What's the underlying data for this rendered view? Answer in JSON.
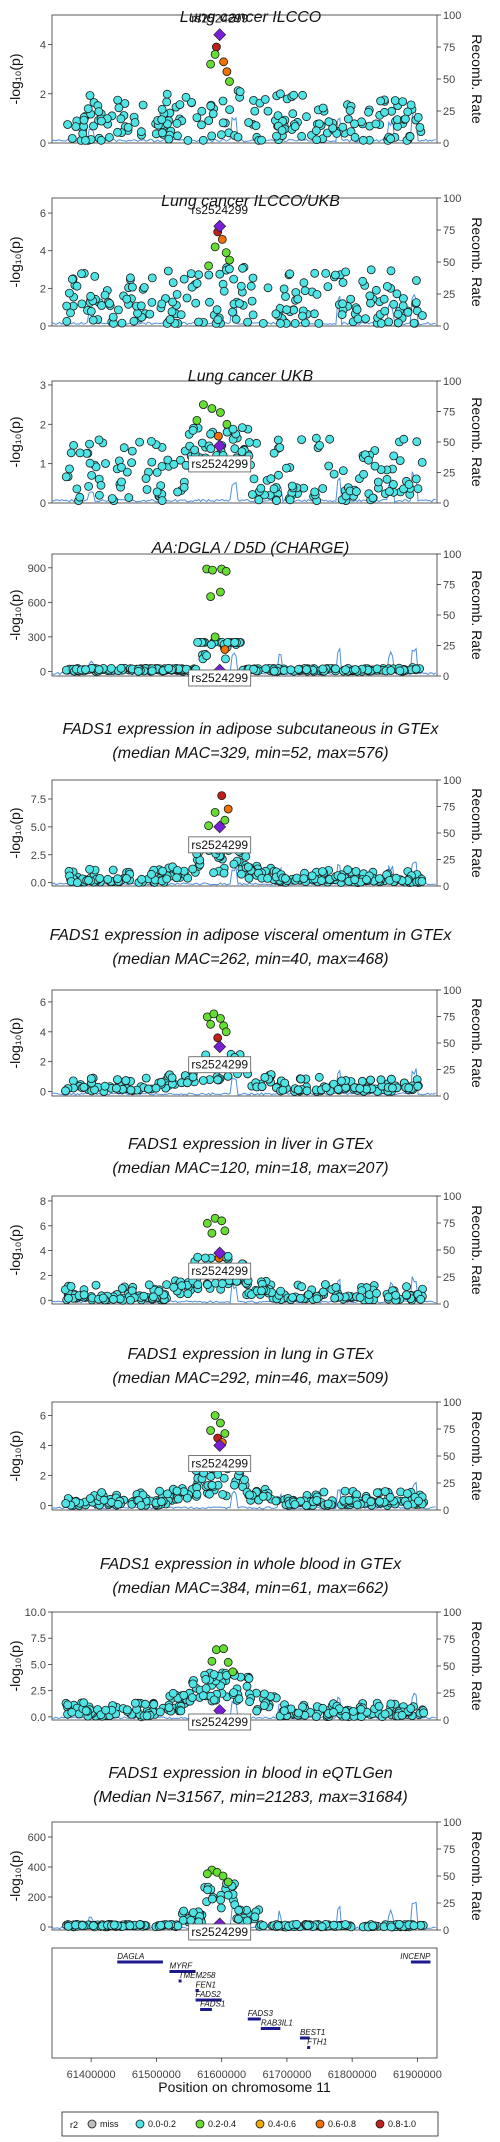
{
  "chart_data": {
    "type": "scatter",
    "x_axis": {
      "label": "Position on chromosome 11",
      "range": [
        61340000,
        61930000
      ],
      "ticks": [
        "61400000",
        "61500000",
        "61600000",
        "61700000",
        "61800000",
        "61900000"
      ]
    },
    "y_label_left": "-log₁₀(p)",
    "y_label_right": "Recomb. Rate",
    "recomb_ticks": [
      "0",
      "25",
      "50",
      "75",
      "100"
    ],
    "lead_snp": {
      "label": "rs2524299",
      "position": 61597000
    },
    "panels": [
      {
        "title_lines": [
          "Lung cancer ILCCO"
        ],
        "ylim": [
          0,
          5.2
        ],
        "yticks": [
          "0",
          "2",
          "4"
        ],
        "ytick_values": [
          0,
          2,
          4
        ],
        "lead_value": 4.4,
        "snp_label_placement": "above",
        "profile": "A",
        "extra": [
          [
            61592000,
            3.9,
            "red"
          ],
          [
            61603000,
            3.3,
            "orange"
          ],
          [
            61608000,
            2.9,
            "orange"
          ],
          [
            61590000,
            3.6,
            "green"
          ],
          [
            61612000,
            2.5,
            "green"
          ],
          [
            61583000,
            3.2,
            "green"
          ]
        ]
      },
      {
        "title_lines": [
          "Lung cancer ILCCO/UKB"
        ],
        "ylim": [
          0,
          6.8
        ],
        "yticks": [
          "0",
          "2",
          "4",
          "6"
        ],
        "ytick_values": [
          0,
          2,
          4,
          6
        ],
        "lead_value": 5.3,
        "snp_label_placement": "above",
        "profile": "A",
        "extra": [
          [
            61594000,
            5.0,
            "red"
          ],
          [
            61601000,
            4.6,
            "orange"
          ],
          [
            61590000,
            4.2,
            "green"
          ],
          [
            61607000,
            3.9,
            "green"
          ],
          [
            61612000,
            3.5,
            "green"
          ],
          [
            61580000,
            3.2,
            "green"
          ]
        ]
      },
      {
        "title_lines": [
          "Lung cancer UKB"
        ],
        "ylim": [
          0,
          3.1
        ],
        "yticks": [
          "0",
          "1",
          "2",
          "3"
        ],
        "ytick_values": [
          0,
          1,
          2,
          3
        ],
        "lead_value": 1.45,
        "snp_label_placement": "below",
        "profile": "B",
        "extra": [
          [
            61572000,
            2.5,
            "green"
          ],
          [
            61585000,
            2.4,
            "green"
          ],
          [
            61598000,
            2.3,
            "green"
          ],
          [
            61608000,
            2.0,
            "green"
          ],
          [
            61595000,
            1.7,
            "orange"
          ],
          [
            61562000,
            2.1,
            "green"
          ]
        ]
      },
      {
        "title_lines": [
          "AA:DGLA / D5D (CHARGE)"
        ],
        "ylim": [
          -40,
          1020
        ],
        "yticks": [
          "0",
          "300",
          "600",
          "900"
        ],
        "ytick_values": [
          0,
          300,
          600,
          900
        ],
        "lead_value": 10,
        "snp_label_placement": "below",
        "profile": "C",
        "extra": [
          [
            61577000,
            890,
            "green"
          ],
          [
            61586000,
            880,
            "green"
          ],
          [
            61600000,
            890,
            "green"
          ],
          [
            61607000,
            870,
            "green"
          ],
          [
            61583000,
            650,
            "green"
          ],
          [
            61598000,
            690,
            "green"
          ],
          [
            61590000,
            300,
            "green"
          ],
          [
            61605000,
            190,
            "orange"
          ]
        ]
      },
      {
        "title_lines": [
          "FADS1 expression in adipose subcutaneous in GTEx",
          "(median MAC=329, min=52, max=576)"
        ],
        "ylim": [
          -0.3,
          9.2
        ],
        "yticks": [
          "0.0",
          "2.5",
          "5.0",
          "7.5"
        ],
        "ytick_values": [
          0,
          2.5,
          5,
          7.5
        ],
        "lead_value": 5.0,
        "snp_label_placement": "below",
        "profile": "D",
        "extra": [
          [
            61600000,
            7.8,
            "red"
          ],
          [
            61610000,
            6.6,
            "orange"
          ],
          [
            61590000,
            6.3,
            "green"
          ],
          [
            61605000,
            5.6,
            "green"
          ],
          [
            61580000,
            5.1,
            "green"
          ]
        ]
      },
      {
        "title_lines": [
          "FADS1 expression in adipose visceral omentum in GTEx",
          "(median MAC=262, min=40, max=468)"
        ],
        "ylim": [
          -0.3,
          6.8
        ],
        "yticks": [
          "0",
          "2",
          "4",
          "6"
        ],
        "ytick_values": [
          0,
          2,
          4,
          6
        ],
        "lead_value": 3.0,
        "snp_label_placement": "below",
        "profile": "D",
        "extra": [
          [
            61578000,
            5.0,
            "green"
          ],
          [
            61588000,
            5.2,
            "green"
          ],
          [
            61598000,
            4.9,
            "green"
          ],
          [
            61583000,
            4.5,
            "green"
          ],
          [
            61603000,
            4.4,
            "green"
          ],
          [
            61594000,
            3.6,
            "red"
          ],
          [
            61607000,
            4.0,
            "green"
          ]
        ]
      },
      {
        "title_lines": [
          "FADS1 expression in liver in GTEx",
          "(median MAC=120, min=18, max=207)"
        ],
        "ylim": [
          -0.3,
          8.4
        ],
        "yticks": [
          "0",
          "2",
          "4",
          "6",
          "8"
        ],
        "ytick_values": [
          0,
          2,
          4,
          6,
          8
        ],
        "lead_value": 3.8,
        "snp_label_placement": "below",
        "profile": "D",
        "extra": [
          [
            61578000,
            6.2,
            "green"
          ],
          [
            61590000,
            6.6,
            "green"
          ],
          [
            61600000,
            6.4,
            "green"
          ],
          [
            61585000,
            5.4,
            "green"
          ],
          [
            61605000,
            5.6,
            "green"
          ],
          [
            61596000,
            3.4,
            "orange"
          ]
        ]
      },
      {
        "title_lines": [
          "FADS1 expression in lung in GTEx",
          "(median MAC=292, min=46, max=509)"
        ],
        "ylim": [
          -0.3,
          6.9
        ],
        "yticks": [
          "0",
          "2",
          "4",
          "6"
        ],
        "ytick_values": [
          0,
          2,
          4,
          6
        ],
        "lead_value": 4.0,
        "snp_label_placement": "below",
        "profile": "D",
        "extra": [
          [
            61590000,
            6.0,
            "green"
          ],
          [
            61598000,
            5.5,
            "green"
          ],
          [
            61583000,
            5.0,
            "green"
          ],
          [
            61605000,
            4.8,
            "green"
          ],
          [
            61594000,
            4.5,
            "red"
          ],
          [
            61601000,
            4.2,
            "orange"
          ]
        ]
      },
      {
        "title_lines": [
          "FADS1 expression in whole blood in GTEx",
          "(median MAC=384, min=61, max=662)"
        ],
        "ylim": [
          -0.3,
          10.0
        ],
        "yticks": [
          "0.0",
          "2.5",
          "5.0",
          "7.5",
          "10.0"
        ],
        "ytick_values": [
          0,
          2.5,
          5,
          7.5,
          10
        ],
        "lead_value": 0.6,
        "snp_label_placement": "below",
        "profile": "E",
        "extra": [
          [
            61592000,
            6.4,
            "green"
          ],
          [
            61603000,
            6.5,
            "green"
          ],
          [
            61585000,
            5.3,
            "green"
          ],
          [
            61610000,
            5.2,
            "green"
          ],
          [
            61617000,
            4.3,
            "green"
          ]
        ]
      },
      {
        "title_lines": [
          "FADS1 expression in blood in eQTLGen",
          "(Median N=31567, min=21283, max=31684)"
        ],
        "ylim": [
          -20,
          700
        ],
        "yticks": [
          "0",
          "200",
          "400",
          "600"
        ],
        "ytick_values": [
          0,
          200,
          400,
          600
        ],
        "lead_value": 20,
        "snp_label_placement": "below",
        "profile": "F",
        "extra": [
          [
            61585000,
            380,
            "green"
          ],
          [
            61593000,
            365,
            "green"
          ],
          [
            61602000,
            340,
            "green"
          ],
          [
            61578000,
            355,
            "green"
          ],
          [
            61610000,
            300,
            "green"
          ]
        ]
      }
    ],
    "genes": [
      {
        "name": "DAGLA",
        "start": 61440000,
        "end": 61510000,
        "row": 0,
        "label_at": "start"
      },
      {
        "name": "MYRF",
        "start": 61520000,
        "end": 61560000,
        "row": 1,
        "label_at": "start"
      },
      {
        "name": "TMEM258",
        "start": 61534000,
        "end": 61538000,
        "row": 2,
        "label_at": "start"
      },
      {
        "name": "FEN1",
        "start": 61560000,
        "end": 61565000,
        "row": 3,
        "label_at": "start"
      },
      {
        "name": "FADS2",
        "start": 61560000,
        "end": 61600000,
        "row": 4,
        "label_at": "start"
      },
      {
        "name": "FADS1",
        "start": 61567000,
        "end": 61585000,
        "row": 5,
        "label_at": "start"
      },
      {
        "name": "FADS3",
        "start": 61640000,
        "end": 61660000,
        "row": 6,
        "label_at": "start"
      },
      {
        "name": "RAB3IL1",
        "start": 61660000,
        "end": 61690000,
        "row": 7,
        "label_at": "start"
      },
      {
        "name": "BEST1",
        "start": 61720000,
        "end": 61735000,
        "row": 8,
        "label_at": "start"
      },
      {
        "name": "FTH1",
        "start": 61731000,
        "end": 61735000,
        "row": 9,
        "label_at": "start"
      },
      {
        "name": "INCENP",
        "start": 61890000,
        "end": 61920000,
        "row": 0,
        "label_at": "end"
      }
    ],
    "legend": {
      "title": "r2",
      "items": [
        {
          "label": "miss",
          "color": "#bdbdbd"
        },
        {
          "label": "0.0-0.2",
          "color": "#4ee4e6"
        },
        {
          "label": "0.2-0.4",
          "color": "#66dd33"
        },
        {
          "label": "0.4-0.6",
          "color": "#f2a900"
        },
        {
          "label": "0.6-0.8",
          "color": "#f07000"
        },
        {
          "label": "0.8-1.0",
          "color": "#c0201c"
        }
      ],
      "placement": "bottom"
    },
    "colors": {
      "cyan": "#4ee4e6",
      "green": "#66dd33",
      "yellow": "#f2a900",
      "orange": "#f07000",
      "red": "#c0201c",
      "lead": "#7a1fd6",
      "recomb_line": "#4f8fdc",
      "gene_bar": "#1c1a8c"
    }
  }
}
